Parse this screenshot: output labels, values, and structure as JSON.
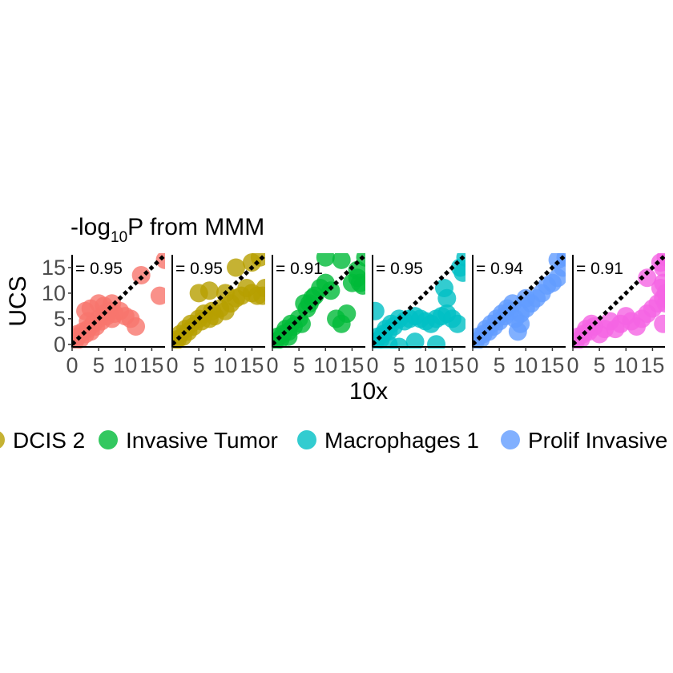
{
  "chart_data": {
    "type": "scatter",
    "title": {
      "prefix": "-log",
      "subscript": "10",
      "suffix": "P from MMM"
    },
    "xlabel": "10x",
    "ylabel": "UCS",
    "xlim": [
      0,
      17.5
    ],
    "ylim": [
      -0.5,
      17.5
    ],
    "x_ticks": [
      0,
      5,
      10,
      15
    ],
    "x_tick_labels": [
      "0",
      "5",
      "10",
      "15"
    ],
    "y_ticks": [
      0,
      5,
      10,
      15
    ],
    "y_tick_labels": [
      "0",
      "5",
      "10",
      "15"
    ],
    "reference_line": "y = x (dotted)",
    "grid": false,
    "legend_position": "bottom",
    "legend_entries": [
      {
        "name": "DCIS 2",
        "color": "#B79F00",
        "partial": true
      },
      {
        "name": "Invasive Tumor",
        "color": "#00BA38"
      },
      {
        "name": "Macrophages 1",
        "color": "#00BFC4"
      },
      {
        "name": "Prolif Invasive",
        "color": "#619CFF"
      }
    ],
    "panels": [
      {
        "color": "#F8766D",
        "corr_label": "= 0.95",
        "points": [
          [
            0.5,
            0.5
          ],
          [
            1,
            1.5
          ],
          [
            1.5,
            1
          ],
          [
            2,
            2.5
          ],
          [
            2.5,
            2
          ],
          [
            3,
            3
          ],
          [
            3.5,
            2.5
          ],
          [
            4,
            4
          ],
          [
            4.5,
            3.5
          ],
          [
            5,
            5
          ],
          [
            5.5,
            4.5
          ],
          [
            6,
            6
          ],
          [
            6.5,
            5.5
          ],
          [
            7,
            6.5
          ],
          [
            7.5,
            5
          ],
          [
            8,
            6
          ],
          [
            2.5,
            6.5
          ],
          [
            3.5,
            7
          ],
          [
            5,
            8
          ],
          [
            6,
            7.5
          ],
          [
            7.5,
            8
          ],
          [
            9,
            6.5
          ],
          [
            10,
            5.5
          ],
          [
            11,
            5
          ],
          [
            12,
            3.5
          ],
          [
            13,
            13.5
          ],
          [
            17.5,
            16.5
          ],
          [
            16.5,
            9.5
          ],
          [
            1,
            2
          ],
          [
            3,
            4.5
          ]
        ]
      },
      {
        "color": "#B79F00",
        "corr_label": "= 0.95",
        "points": [
          [
            0.5,
            0.5
          ],
          [
            1,
            1
          ],
          [
            1.5,
            2
          ],
          [
            2,
            1.5
          ],
          [
            2.5,
            3
          ],
          [
            3,
            2.5
          ],
          [
            3.5,
            4
          ],
          [
            4,
            3.5
          ],
          [
            5,
            5
          ],
          [
            5.5,
            4.5
          ],
          [
            6,
            6
          ],
          [
            7,
            5
          ],
          [
            7.5,
            6.5
          ],
          [
            8,
            5.5
          ],
          [
            9,
            7
          ],
          [
            10,
            6.5
          ],
          [
            11,
            8
          ],
          [
            12,
            9
          ],
          [
            13,
            9.5
          ],
          [
            14,
            11
          ],
          [
            15,
            10
          ],
          [
            16,
            9.5
          ],
          [
            17,
            9.5
          ],
          [
            17.5,
            11
          ],
          [
            5,
            10
          ],
          [
            7,
            10.5
          ],
          [
            10,
            10
          ],
          [
            12,
            15
          ],
          [
            15,
            16
          ],
          [
            16.5,
            17
          ]
        ]
      },
      {
        "color": "#00BA38",
        "corr_label": "= 0.91",
        "points": [
          [
            0.5,
            0.5
          ],
          [
            1,
            1.5
          ],
          [
            1.5,
            1
          ],
          [
            2,
            2
          ],
          [
            2.5,
            3
          ],
          [
            3,
            2.5
          ],
          [
            3.5,
            4
          ],
          [
            4,
            3.5
          ],
          [
            5,
            5
          ],
          [
            5.5,
            4
          ],
          [
            6,
            8
          ],
          [
            6.5,
            7
          ],
          [
            7,
            8
          ],
          [
            7.5,
            9
          ],
          [
            8,
            9.5
          ],
          [
            9,
            11
          ],
          [
            10,
            12
          ],
          [
            11,
            10.5
          ],
          [
            12,
            5
          ],
          [
            13,
            4
          ],
          [
            14,
            6
          ],
          [
            15,
            12
          ],
          [
            16,
            13
          ],
          [
            16.5,
            12
          ],
          [
            17,
            11.5
          ],
          [
            17.5,
            17
          ],
          [
            10,
            17
          ],
          [
            13,
            16.5
          ],
          [
            16,
            14.5
          ],
          [
            3,
            1.5
          ]
        ]
      },
      {
        "color": "#00BFC4",
        "corr_label": "= 0.95",
        "points": [
          [
            0.5,
            0.5
          ],
          [
            1,
            1.5
          ],
          [
            1.5,
            1
          ],
          [
            2,
            2
          ],
          [
            2.5,
            3
          ],
          [
            3,
            2.5
          ],
          [
            3.5,
            4
          ],
          [
            4,
            3.5
          ],
          [
            5,
            5
          ],
          [
            6,
            4.5
          ],
          [
            7,
            5
          ],
          [
            8,
            5.5
          ],
          [
            9,
            5
          ],
          [
            10,
            4.5
          ],
          [
            11,
            4
          ],
          [
            12,
            5
          ],
          [
            13,
            5.5
          ],
          [
            14,
            6
          ],
          [
            15,
            5
          ],
          [
            16,
            4
          ],
          [
            0.5,
            6.5
          ],
          [
            3,
            0
          ],
          [
            5,
            -0.5
          ],
          [
            8,
            0.5
          ],
          [
            12,
            0
          ],
          [
            13.5,
            11
          ],
          [
            14,
            9
          ],
          [
            16.5,
            15
          ],
          [
            17,
            14
          ],
          [
            17.5,
            17
          ]
        ]
      },
      {
        "color": "#619CFF",
        "corr_label": "= 0.94",
        "points": [
          [
            0.5,
            0.5
          ],
          [
            1,
            1.5
          ],
          [
            1.5,
            1
          ],
          [
            2,
            2
          ],
          [
            2.5,
            3
          ],
          [
            3,
            2.5
          ],
          [
            3.5,
            4
          ],
          [
            4,
            3.5
          ],
          [
            4.5,
            5
          ],
          [
            5,
            4.5
          ],
          [
            5.5,
            6
          ],
          [
            6,
            5.5
          ],
          [
            6.5,
            7
          ],
          [
            7,
            6.5
          ],
          [
            7.5,
            8
          ],
          [
            8,
            5
          ],
          [
            9,
            6
          ],
          [
            10,
            7
          ],
          [
            11,
            8
          ],
          [
            12,
            9
          ],
          [
            13,
            10
          ],
          [
            14,
            11.5
          ],
          [
            15,
            12
          ],
          [
            16,
            13
          ],
          [
            17,
            15
          ],
          [
            17.5,
            17
          ],
          [
            9,
            4
          ],
          [
            8.5,
            2.5
          ],
          [
            10,
            9
          ],
          [
            16,
            16.5
          ]
        ]
      },
      {
        "color": "#F564E3",
        "corr_label": "= 0.91",
        "points": [
          [
            0.5,
            0.5
          ],
          [
            1,
            1.5
          ],
          [
            1.5,
            1
          ],
          [
            2,
            2
          ],
          [
            2.5,
            3
          ],
          [
            3,
            2.5
          ],
          [
            3.5,
            4
          ],
          [
            4,
            3.5
          ],
          [
            5,
            2
          ],
          [
            6,
            3
          ],
          [
            7,
            4.5
          ],
          [
            8,
            3
          ],
          [
            9,
            4
          ],
          [
            10,
            5.5
          ],
          [
            11,
            4.5
          ],
          [
            12,
            3.5
          ],
          [
            13,
            5
          ],
          [
            14,
            6
          ],
          [
            15,
            7
          ],
          [
            16,
            8
          ],
          [
            17,
            9
          ],
          [
            17.5,
            10
          ],
          [
            17,
            12
          ],
          [
            16.5,
            11
          ],
          [
            17.5,
            8
          ],
          [
            17,
            4
          ],
          [
            14,
            13
          ],
          [
            17.5,
            17
          ],
          [
            17,
            15
          ],
          [
            16.5,
            16
          ]
        ]
      }
    ]
  }
}
